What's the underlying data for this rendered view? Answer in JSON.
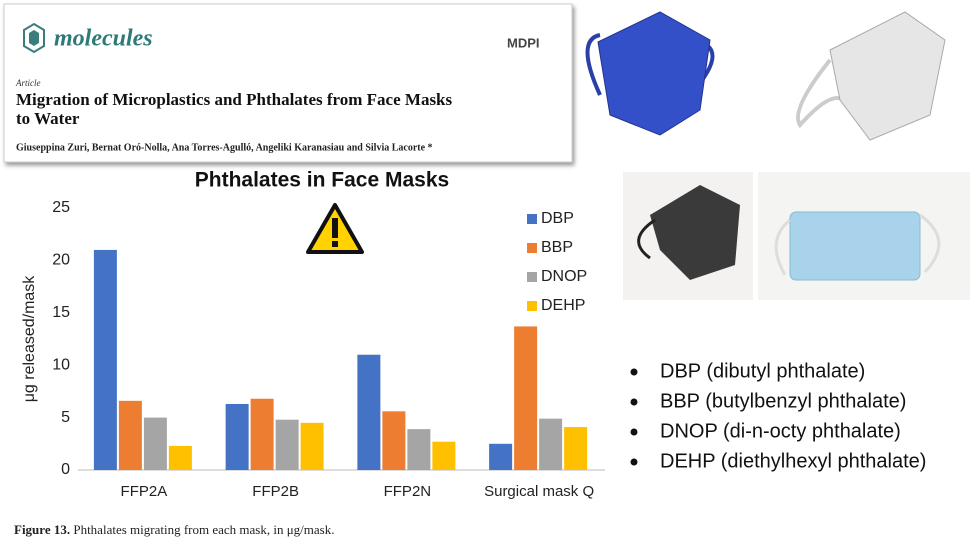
{
  "paper": {
    "journal": "molecules",
    "publisher": "MDPI",
    "article_type": "Article",
    "title_lines": [
      "Migration of Microplastics and Phthalates from Face Masks",
      "to Water"
    ],
    "authors": "Giuseppina Zuri, Bernat Oró-Nolla, Ana Torres-Agulló, Angeliki Karanasiau and Silvia Lacorte *"
  },
  "chart_data": {
    "type": "bar",
    "title": "Phthalates in Face Masks",
    "y_label": "μg released/mask",
    "categories": [
      "FFP2A",
      "FFP2B",
      "FFP2N",
      "Surgical mask Q"
    ],
    "series": [
      {
        "name": "DBP",
        "color": "#4472c4",
        "values": [
          21,
          6.3,
          11,
          2.5
        ]
      },
      {
        "name": "BBP",
        "color": "#ed7d31",
        "values": [
          6.6,
          6.8,
          5.6,
          13.7
        ]
      },
      {
        "name": "DNOP",
        "color": "#a5a5a5",
        "values": [
          5.0,
          4.8,
          3.9,
          4.9
        ]
      },
      {
        "name": "DEHP",
        "color": "#ffc000",
        "values": [
          2.3,
          4.5,
          2.7,
          4.1
        ]
      }
    ],
    "ylim": [
      0,
      25
    ],
    "yticks": [
      0,
      5,
      10,
      15,
      20,
      25
    ],
    "grid": false,
    "legend": "top-right"
  },
  "caption": {
    "label": "Figure 13.",
    "text": "Phthalates migrating from each mask, in μg/mask."
  },
  "bullets": [
    "DBP (dibutyl phthalate)",
    "BBP (butylbenzyl phthalate)",
    "DNOP (di-n-octy phthalate)",
    "DEHP (diethylhexyl phthalate)"
  ]
}
